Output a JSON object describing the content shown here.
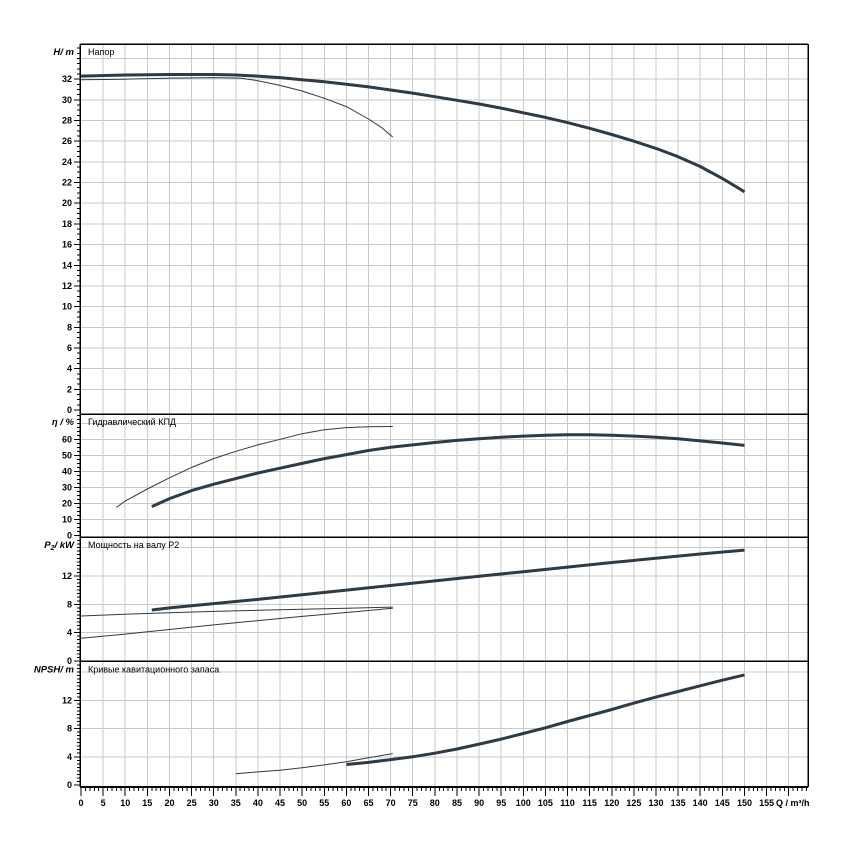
{
  "colors": {
    "curve": "#2e3a46",
    "grid": "#c9c9c9",
    "axis": "#000000",
    "text": "#000000",
    "background": "#ffffff"
  },
  "x_axis": {
    "unit_label": "Q / m³/h",
    "min": 0,
    "label_max": 155,
    "grid_max": 160,
    "minor_max": 164,
    "tick_step": 5,
    "minor_step": 1
  },
  "chart_data": [
    {
      "id": "head",
      "type": "line",
      "title": "Напор",
      "axis_label": {
        "pre": "H",
        "sub": "",
        "post": "/ m"
      },
      "ylim": [
        0,
        35.4
      ],
      "label_step": 2,
      "label_max": 32,
      "grid_step": 2,
      "minor_step": 0.5,
      "series": [
        {
          "name": "head-main-curve",
          "width": 3,
          "points": [
            [
              0,
              32.3
            ],
            [
              10,
              32.4
            ],
            [
              20,
              32.45
            ],
            [
              30,
              32.45
            ],
            [
              35,
              32.4
            ],
            [
              40,
              32.3
            ],
            [
              45,
              32.15
            ],
            [
              50,
              31.95
            ],
            [
              55,
              31.75
            ],
            [
              60,
              31.5
            ],
            [
              65,
              31.25
            ],
            [
              70,
              30.95
            ],
            [
              75,
              30.65
            ],
            [
              80,
              30.3
            ],
            [
              85,
              29.95
            ],
            [
              90,
              29.6
            ],
            [
              95,
              29.2
            ],
            [
              100,
              28.75
            ],
            [
              105,
              28.3
            ],
            [
              110,
              27.8
            ],
            [
              115,
              27.25
            ],
            [
              120,
              26.65
            ],
            [
              125,
              26.0
            ],
            [
              130,
              25.3
            ],
            [
              135,
              24.5
            ],
            [
              140,
              23.55
            ],
            [
              145,
              22.4
            ],
            [
              150,
              21.1
            ]
          ]
        },
        {
          "name": "head-reduced-curve",
          "width": 1,
          "points": [
            [
              0,
              31.95
            ],
            [
              10,
              32.0
            ],
            [
              20,
              32.1
            ],
            [
              30,
              32.15
            ],
            [
              36,
              32.1
            ],
            [
              40,
              31.85
            ],
            [
              45,
              31.4
            ],
            [
              50,
              30.85
            ],
            [
              55,
              30.15
            ],
            [
              60,
              29.35
            ],
            [
              65,
              28.15
            ],
            [
              68,
              27.3
            ],
            [
              70.5,
              26.4
            ]
          ]
        }
      ]
    },
    {
      "id": "efficiency",
      "type": "line",
      "title": "Гидравлический КПД",
      "axis_label": {
        "pre": "η",
        "sub": "",
        "post": " / %"
      },
      "ylim": [
        0,
        75.8
      ],
      "label_step": 10,
      "label_max": 60,
      "grid_step": 10,
      "minor_step": 2.5,
      "series": [
        {
          "name": "efficiency-main-curve",
          "width": 3,
          "points": [
            [
              16,
              18
            ],
            [
              20,
              23
            ],
            [
              25,
              28
            ],
            [
              30,
              32
            ],
            [
              35,
              35.5
            ],
            [
              40,
              39
            ],
            [
              45,
              42
            ],
            [
              50,
              45
            ],
            [
              55,
              48
            ],
            [
              60,
              50.5
            ],
            [
              65,
              53
            ],
            [
              70,
              55
            ],
            [
              75,
              56.5
            ],
            [
              80,
              58
            ],
            [
              85,
              59.3
            ],
            [
              90,
              60.4
            ],
            [
              95,
              61.3
            ],
            [
              100,
              62
            ],
            [
              105,
              62.5
            ],
            [
              110,
              62.8
            ],
            [
              115,
              62.8
            ],
            [
              120,
              62.5
            ],
            [
              125,
              62
            ],
            [
              130,
              61.3
            ],
            [
              135,
              60.3
            ],
            [
              140,
              59
            ],
            [
              145,
              57.7
            ],
            [
              150,
              56.2
            ]
          ]
        },
        {
          "name": "efficiency-reduced-curve",
          "width": 1,
          "points": [
            [
              8,
              17.5
            ],
            [
              10,
              21.5
            ],
            [
              15,
              29
            ],
            [
              20,
              36
            ],
            [
              25,
              42.5
            ],
            [
              30,
              48
            ],
            [
              35,
              52.5
            ],
            [
              40,
              56.5
            ],
            [
              45,
              60
            ],
            [
              50,
              63.5
            ],
            [
              55,
              66
            ],
            [
              60,
              67.3
            ],
            [
              65,
              67.8
            ],
            [
              70.5,
              68
            ]
          ]
        }
      ]
    },
    {
      "id": "power",
      "type": "line",
      "title": "Мощность на валу P2",
      "axis_label": {
        "pre": "P",
        "sub": "2",
        "post": "/ kW"
      },
      "ylim": [
        0,
        17.5
      ],
      "label_step": 4,
      "label_max": 12,
      "grid_step": 4,
      "minor_step": 0.5,
      "series": [
        {
          "name": "power-main-curve",
          "width": 3,
          "points": [
            [
              16,
              7.2
            ],
            [
              20,
              7.5
            ],
            [
              30,
              8.1
            ],
            [
              40,
              8.7
            ],
            [
              50,
              9.35
            ],
            [
              60,
              10.0
            ],
            [
              70,
              10.65
            ],
            [
              80,
              11.3
            ],
            [
              90,
              11.95
            ],
            [
              100,
              12.6
            ],
            [
              110,
              13.25
            ],
            [
              120,
              13.9
            ],
            [
              130,
              14.5
            ],
            [
              140,
              15.1
            ],
            [
              150,
              15.65
            ]
          ]
        },
        {
          "name": "power-upper-thin-curve",
          "width": 1,
          "points": [
            [
              0,
              6.35
            ],
            [
              10,
              6.6
            ],
            [
              20,
              6.8
            ],
            [
              30,
              7.0
            ],
            [
              40,
              7.15
            ],
            [
              50,
              7.3
            ],
            [
              60,
              7.45
            ],
            [
              70.5,
              7.6
            ]
          ]
        },
        {
          "name": "power-lower-thin-curve",
          "width": 1,
          "points": [
            [
              0,
              3.2
            ],
            [
              10,
              3.8
            ],
            [
              20,
              4.45
            ],
            [
              30,
              5.1
            ],
            [
              40,
              5.7
            ],
            [
              50,
              6.3
            ],
            [
              60,
              6.85
            ],
            [
              70.5,
              7.45
            ]
          ]
        }
      ]
    },
    {
      "id": "npsh",
      "type": "line",
      "title": "Кривые кавитационного запаса",
      "axis_label": {
        "pre": "NPSH",
        "sub": "",
        "post": "/ m"
      },
      "ylim": [
        0,
        17.5
      ],
      "label_step": 4,
      "label_max": 12,
      "grid_step": 4,
      "minor_step": 0.5,
      "series": [
        {
          "name": "npsh-main-curve",
          "width": 3,
          "points": [
            [
              60,
              2.9
            ],
            [
              65,
              3.2
            ],
            [
              70,
              3.6
            ],
            [
              75,
              4.0
            ],
            [
              80,
              4.5
            ],
            [
              85,
              5.1
            ],
            [
              90,
              5.8
            ],
            [
              95,
              6.5
            ],
            [
              100,
              7.3
            ],
            [
              105,
              8.1
            ],
            [
              110,
              9.0
            ],
            [
              115,
              9.85
            ],
            [
              120,
              10.7
            ],
            [
              125,
              11.6
            ],
            [
              130,
              12.45
            ],
            [
              135,
              13.25
            ],
            [
              140,
              14.05
            ],
            [
              145,
              14.85
            ],
            [
              150,
              15.6
            ]
          ]
        },
        {
          "name": "npsh-reduced-curve",
          "width": 1,
          "points": [
            [
              35,
              1.6
            ],
            [
              40,
              1.85
            ],
            [
              45,
              2.1
            ],
            [
              50,
              2.45
            ],
            [
              55,
              2.85
            ],
            [
              60,
              3.3
            ],
            [
              65,
              3.85
            ],
            [
              70.5,
              4.45
            ]
          ]
        }
      ]
    }
  ]
}
